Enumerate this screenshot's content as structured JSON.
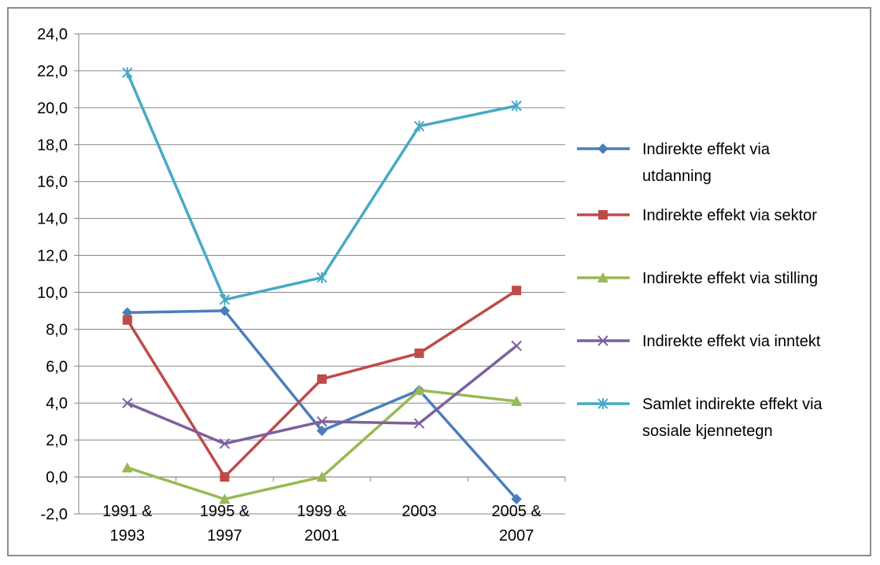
{
  "chart_data": {
    "type": "line",
    "categories": [
      [
        "1991 &",
        "1993"
      ],
      [
        "1995 &",
        "1997"
      ],
      [
        "1999 &",
        "2001"
      ],
      [
        "2003"
      ],
      [
        "2005 &",
        "2007"
      ]
    ],
    "ylim": [
      -2,
      24
    ],
    "yticks": [
      "-2,0",
      "0,0",
      "2,0",
      "4,0",
      "6,0",
      "8,0",
      "10,0",
      "12,0",
      "14,0",
      "16,0",
      "18,0",
      "20,0",
      "22,0",
      "24,0"
    ],
    "grid": true,
    "legend_position": "right",
    "series": [
      {
        "name_lines": [
          "Indirekte effekt via",
          "utdanning"
        ],
        "values": [
          8.9,
          9.0,
          2.5,
          4.7,
          -1.2
        ],
        "color": "#4a7ebb",
        "marker": "diamond"
      },
      {
        "name_lines": [
          "Indirekte effekt via sektor"
        ],
        "values": [
          8.5,
          0.0,
          5.3,
          6.7,
          10.1
        ],
        "color": "#be4b48",
        "marker": "square"
      },
      {
        "name_lines": [
          "Indirekte effekt via stilling"
        ],
        "values": [
          0.5,
          -1.2,
          0.0,
          4.7,
          4.1
        ],
        "color": "#98b954",
        "marker": "triangle"
      },
      {
        "name_lines": [
          "Indirekte effekt via inntekt"
        ],
        "values": [
          4.0,
          1.8,
          3.0,
          2.9,
          7.1
        ],
        "color": "#7d60a0",
        "marker": "x"
      },
      {
        "name_lines": [
          "Samlet indirekte effekt via",
          "sosiale kjennetegn"
        ],
        "values": [
          21.9,
          9.6,
          10.8,
          19.0,
          20.1
        ],
        "color": "#46aac5",
        "marker": "star"
      }
    ]
  }
}
